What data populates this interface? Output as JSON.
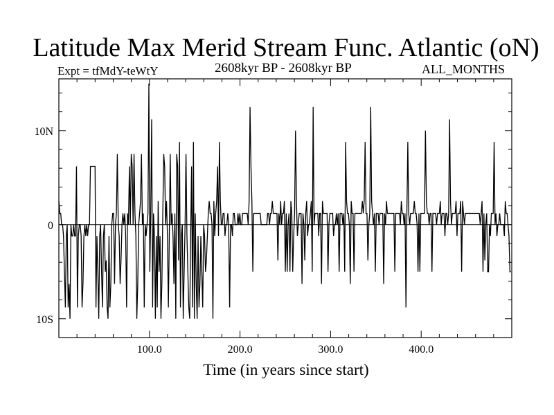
{
  "chart_data": {
    "type": "line",
    "title": "Latitude Max Merid Stream Func. Atlantic (oN)",
    "subtitle": "2608kyr BP - 2608kyr BP",
    "expt_label": "Expt = tfMdY-teWtY",
    "season_label": "ALL_MONTHS",
    "xlabel": "Time (in years since start)",
    "ylabel": "",
    "xlim": [
      0,
      500
    ],
    "ylim": [
      -12,
      15.5
    ],
    "x_ticks": [
      {
        "value": 100,
        "label": "100.0"
      },
      {
        "value": 200,
        "label": "200.0"
      },
      {
        "value": 300,
        "label": "300.0"
      },
      {
        "value": 400,
        "label": "400.0"
      }
    ],
    "y_ticks": [
      {
        "value": 10,
        "label": "10N"
      },
      {
        "value": 0,
        "label": "0"
      },
      {
        "value": -10,
        "label": "10S"
      }
    ],
    "zero_line": true,
    "grid": false,
    "line_color": "#000000",
    "series": [
      {
        "values": [
          2.5,
          1.2,
          1.2,
          0,
          0,
          -1.2,
          -5,
          -8.8,
          -1.2,
          0,
          -8.8,
          -6.3,
          -10,
          0,
          -1.2,
          -1.2,
          0,
          -1.2,
          -1.2,
          6.2,
          -8.8,
          -1.2,
          0,
          0,
          -1.2,
          -8.8,
          -6.3,
          -1.2,
          0,
          -1.2,
          0,
          -1.2,
          0,
          0,
          6.2,
          6.2,
          6.2,
          6.2,
          6.2,
          6.2,
          -8.8,
          -1.2,
          -5,
          -10,
          -1.2,
          0,
          -5,
          -8.8,
          -1.2,
          0,
          -5,
          -3.8,
          -8.8,
          -10,
          -1.2,
          -8.8,
          -6.3,
          0,
          1.2,
          1.2,
          -6.3,
          0,
          1.2,
          7.5,
          0,
          -1.2,
          -6.3,
          -3.8,
          0,
          1.2,
          0,
          1.2,
          -1.2,
          -8.8,
          1.2,
          0,
          6.2,
          0,
          7.5,
          6.2,
          0,
          7.5,
          1.2,
          -1.2,
          -10,
          -6.3,
          0,
          1.2,
          2.5,
          7.5,
          0,
          1.2,
          -8.8,
          0,
          -1.2,
          0,
          1.2,
          15,
          -5,
          1.2,
          11.2,
          -8.8,
          1.2,
          -1.2,
          -10,
          -1.2,
          -8.8,
          2.5,
          -5,
          -1.2,
          -10,
          -6.3,
          1.2,
          7.5,
          6.2,
          0,
          2.5,
          -1.2,
          -8.8,
          -1.2,
          7.5,
          0,
          1.2,
          -1.2,
          -6.3,
          1.2,
          -10,
          7.5,
          6.2,
          -3.8,
          8.8,
          -8.8,
          -1.2,
          0,
          -10,
          -5,
          0,
          7.5,
          -1.2,
          -5,
          -8.8,
          -10,
          -1.2,
          6.2,
          -8.8,
          8.8,
          -10,
          1.2,
          -6.3,
          -10,
          -1.2,
          -8.8,
          -6.3,
          -1.2,
          -5,
          -8.8,
          0,
          -1.2,
          -5,
          -3.8,
          -1.2,
          1.2,
          2.5,
          1.2,
          1.2,
          0,
          -10,
          2.5,
          -1.2,
          1.2,
          2.5,
          6.2,
          -1.2,
          8.8,
          2.5,
          0,
          0,
          1.2,
          1.2,
          -1.2,
          0,
          0,
          1.2,
          0,
          -8.8,
          0,
          0,
          -1.2,
          1.2,
          1.2,
          0,
          0,
          0,
          1.2,
          0,
          1.2,
          0,
          0,
          1.2,
          1.2,
          1.2,
          1.2,
          1.2,
          1.2,
          0,
          2.5,
          12.5,
          6.2,
          2.5,
          -5,
          1.2,
          1.2,
          1.2,
          1.2,
          1.2,
          1.2,
          1.2,
          1.2,
          0,
          0,
          0,
          0,
          0,
          0,
          0,
          1.2,
          1.2,
          0,
          1.2,
          1.2,
          2.5,
          1.2,
          1.2,
          1.2,
          1.2,
          1.2,
          -3.8,
          1.2,
          0,
          2.5,
          0,
          1.2,
          1.2,
          2.5,
          -5,
          1.2,
          -5,
          0,
          1.2,
          -5,
          2.5,
          1.2,
          -5,
          -1.2,
          1.2,
          10,
          2.5,
          -1.2,
          0,
          1.2,
          1.2,
          1.2,
          -6.3,
          1.2,
          0,
          -3.8,
          1.2,
          2.5,
          -1.2,
          0,
          0,
          1.2,
          2.5,
          -5,
          12.5,
          0,
          1.2,
          1.2,
          1.2,
          1.2,
          -1.2,
          1.2,
          1.2,
          -6.3,
          2.5,
          1.2,
          1.2,
          1.2,
          1.2,
          1.2,
          -5,
          0,
          1.2,
          1.2,
          1.2,
          1.2,
          -1.2,
          0,
          0,
          1.2,
          0,
          1.2,
          -5,
          1.2,
          1.2,
          1.2,
          0,
          1.2,
          -5,
          8.8,
          2.5,
          1.2,
          1.2,
          0,
          -6.3,
          2.5,
          1.2,
          1.2,
          -5,
          1.2,
          1.2,
          1.2,
          1.2,
          1.2,
          1.2,
          1.2,
          1.2,
          2.5,
          1.2,
          2.5,
          8.8,
          1.2,
          1.2,
          -3.8,
          0,
          1.2,
          12.5,
          2.5,
          1.2,
          0,
          1.2,
          -5,
          1.2,
          1.2,
          1.2,
          0,
          1.2,
          1.2,
          1.2,
          1.2,
          -6.3,
          1.2,
          0,
          2.5,
          1.2,
          1.2,
          1.2,
          1.2,
          1.2,
          1.2,
          1.2,
          1.2,
          -5,
          1.2,
          1.2,
          1.2,
          1.2,
          1.2,
          0,
          2.5,
          1.2,
          1.2,
          0,
          1.2,
          -8.8,
          1.2,
          8.8,
          1.2,
          0,
          1.2,
          1.2,
          1.2,
          1.2,
          2.5,
          1.2,
          1.2,
          0,
          -5,
          1.2,
          -5,
          1.2,
          1.2,
          1.2,
          1.2,
          1.2,
          10,
          2.5,
          1.2,
          1.2,
          0,
          1.2,
          1.2,
          -5,
          1.2,
          1.2,
          1.2,
          1.2,
          0,
          1.2,
          1.2,
          1.2,
          2.5,
          0,
          1.2,
          1.2,
          1.2,
          -1.2,
          1.2,
          1.2,
          0,
          1.2,
          11.2,
          2.5,
          0,
          1.2,
          1.2,
          1.2,
          1.2,
          2.5,
          -1.2,
          1.2,
          1.2,
          1.2,
          2.5,
          -5,
          2.5,
          1.2,
          0,
          1.2,
          1.2,
          1.2,
          1.2,
          1.2,
          1.2,
          1.2,
          1.2,
          1.2,
          1.2,
          1.2,
          1.2,
          1.2,
          1.2,
          1.2,
          1.2,
          0,
          1.2,
          2.5,
          -5,
          1.2,
          -3.8,
          0,
          1.2,
          -5,
          -5,
          0,
          -1.2,
          1.2,
          1.2,
          1.2,
          8.8,
          0,
          1.2,
          -1.2,
          0,
          0,
          1.2,
          0,
          0,
          0,
          0,
          -1.2,
          2.5,
          1.2,
          1.2,
          0,
          -1.2,
          -5,
          -5
        ]
      }
    ]
  }
}
